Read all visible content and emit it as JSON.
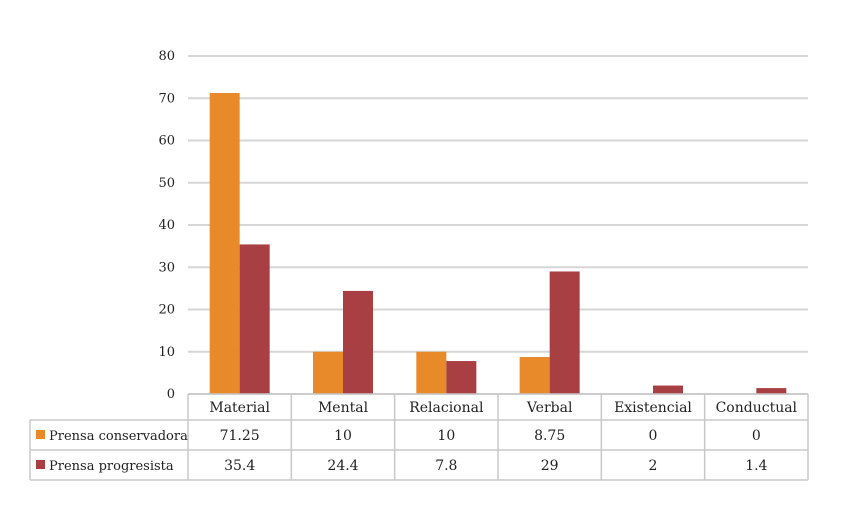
{
  "chart_data": {
    "type": "bar",
    "categories": [
      "Material",
      "Mental",
      "Relacional",
      "Verbal",
      "Existencial",
      "Conductual"
    ],
    "series": [
      {
        "name": "Prensa conservadora",
        "color": "#E8892A",
        "values": [
          71.25,
          10,
          10,
          8.75,
          0,
          0
        ],
        "labels": [
          "71.25",
          "10",
          "10",
          "8.75",
          "0",
          "0"
        ]
      },
      {
        "name": "Prensa progresista",
        "color": "#A83F43",
        "values": [
          35.4,
          24.4,
          7.8,
          29,
          2,
          1.4
        ],
        "labels": [
          "35.4",
          "24.4",
          "7.8",
          "29",
          "2",
          "1.4"
        ]
      }
    ],
    "y_ticks": [
      "0",
      "10",
      "20",
      "30",
      "40",
      "50",
      "60",
      "70",
      "80"
    ],
    "ylim": [
      0,
      80
    ],
    "grid": true,
    "legend": "data-table"
  }
}
